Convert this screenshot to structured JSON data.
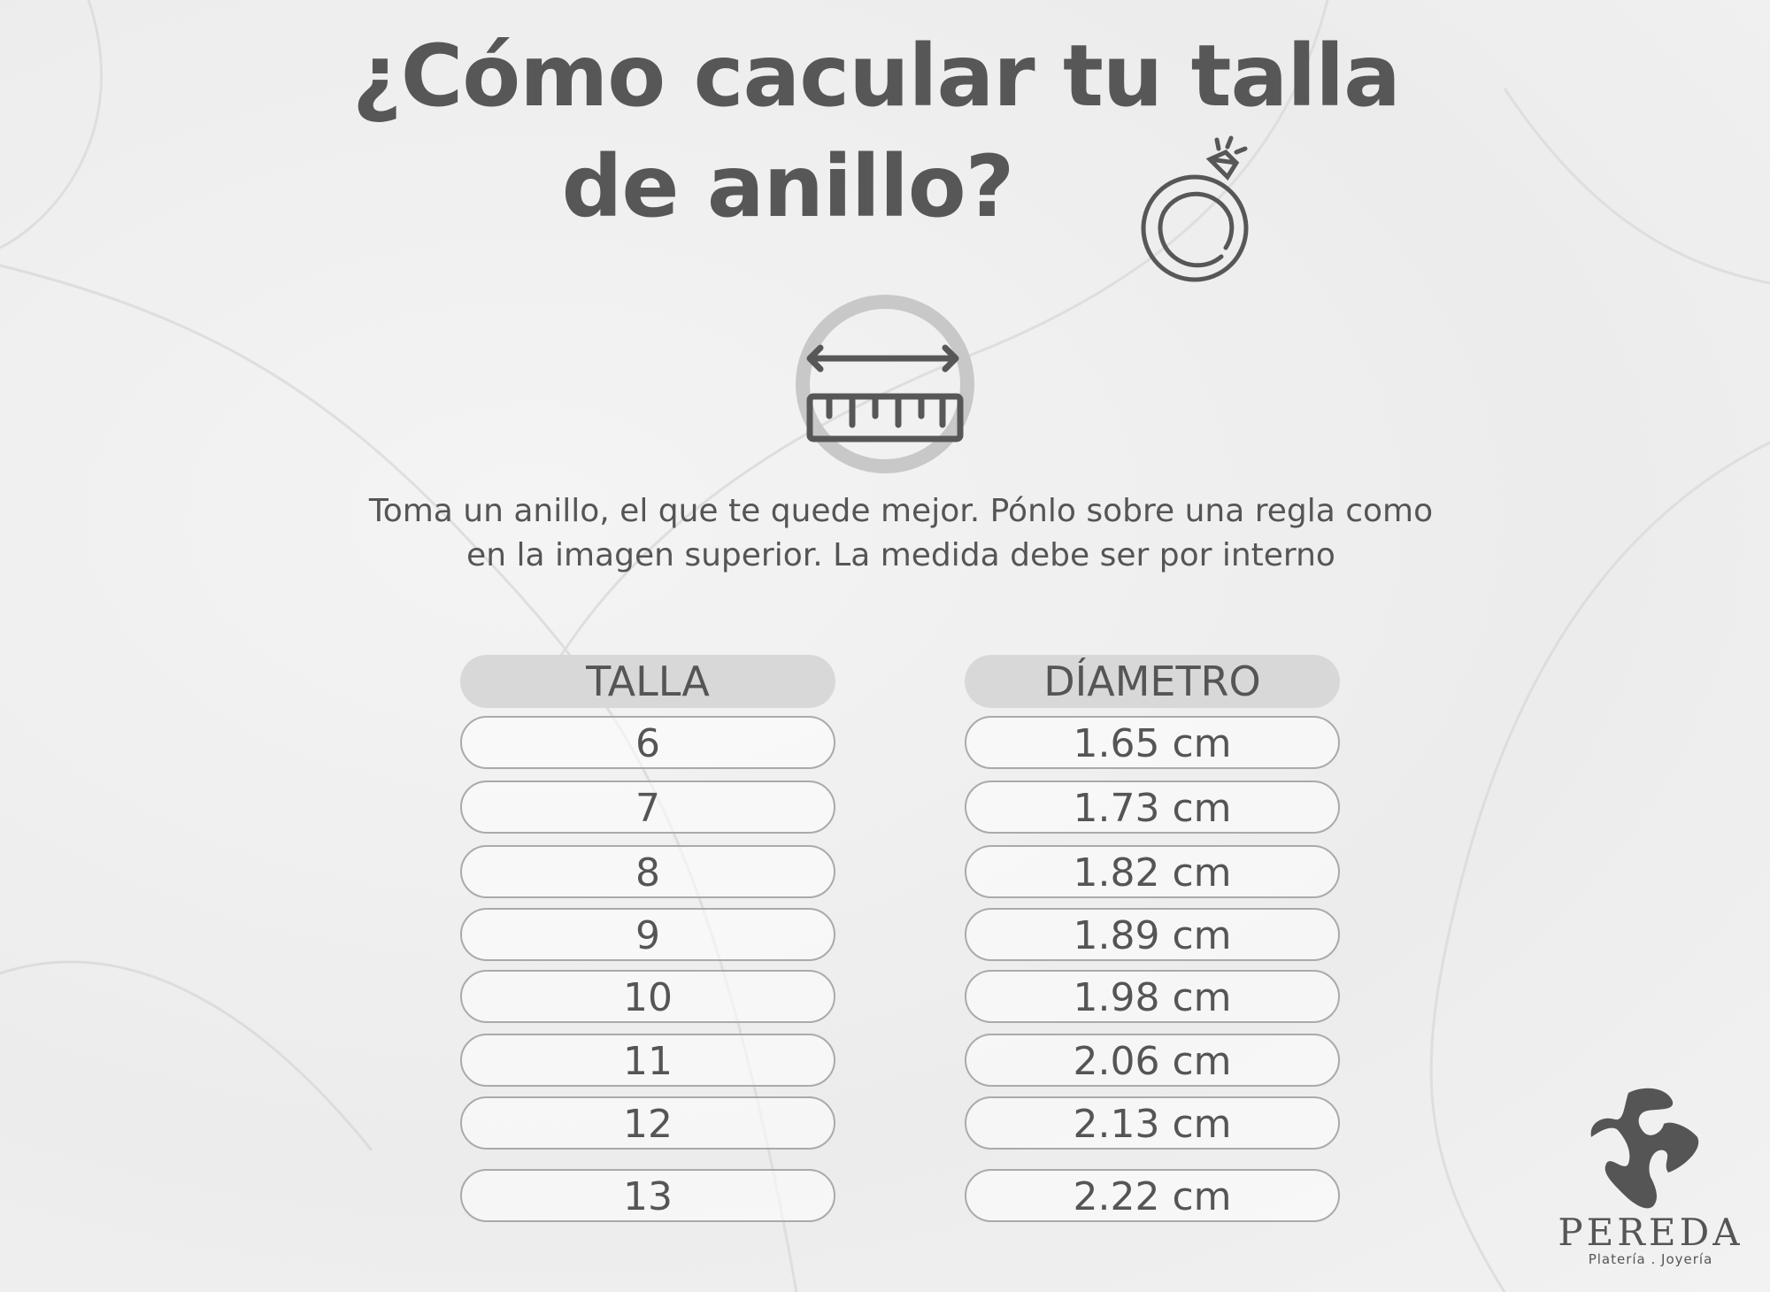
{
  "title": {
    "line1": "¿Cómo cacular tu talla",
    "line2": "de anillo?"
  },
  "icons": {
    "ring": "diamond-ring-icon",
    "ruler": "ruler-measure-icon"
  },
  "instructions": "Toma un anillo, el que te quede mejor. Pónlo sobre una regla como en la imagen superior. La medida debe ser por interno",
  "table": {
    "headers": [
      "TALLA",
      "DÍAMETRO"
    ],
    "rows": [
      {
        "talla": "6",
        "diametro": "1.65 cm"
      },
      {
        "talla": "7",
        "diametro": "1.73 cm"
      },
      {
        "talla": "8",
        "diametro": "1.82 cm"
      },
      {
        "talla": "9",
        "diametro": "1.89 cm"
      },
      {
        "talla": "10",
        "diametro": "1.98 cm"
      },
      {
        "talla": "11",
        "diametro": "2.06 cm"
      },
      {
        "talla": "12",
        "diametro": "2.13 cm"
      },
      {
        "talla": "13",
        "diametro": "2.22 cm"
      }
    ]
  },
  "logo": {
    "name": "PEREDA",
    "tagline": "Platería . Joyería"
  },
  "colors": {
    "text": "#555555",
    "header_fill": "#d8d8d8",
    "border": "#aaaaaa"
  }
}
